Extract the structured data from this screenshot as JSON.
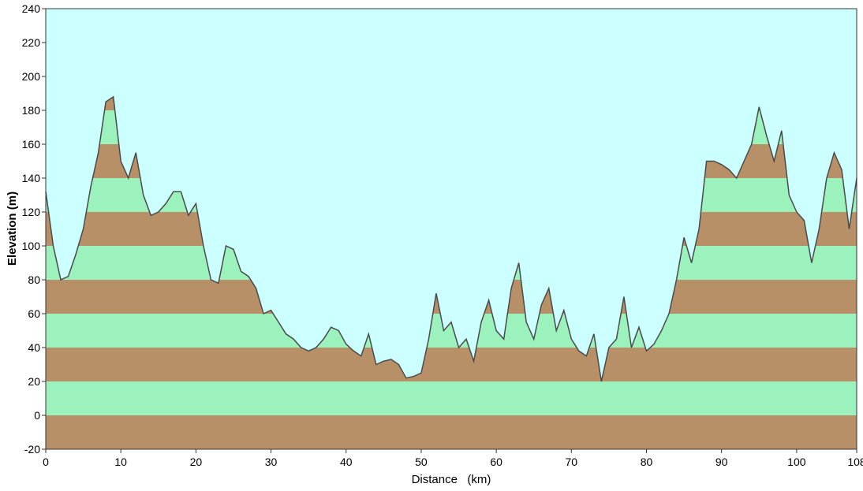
{
  "chart_data": {
    "type": "area",
    "xlabel": "Distance   (km)",
    "ylabel": "Elevation (m)",
    "x": [
      0,
      1,
      2,
      3,
      4,
      5,
      6,
      7,
      8,
      9,
      10,
      11,
      12,
      13,
      14,
      15,
      16,
      17,
      18,
      19,
      20,
      21,
      22,
      23,
      24,
      25,
      26,
      27,
      28,
      29,
      30,
      31,
      32,
      33,
      34,
      35,
      36,
      37,
      38,
      39,
      40,
      41,
      42,
      43,
      44,
      45,
      46,
      47,
      48,
      49,
      50,
      51,
      52,
      53,
      54,
      55,
      56,
      57,
      58,
      59,
      60,
      61,
      62,
      63,
      64,
      65,
      66,
      67,
      68,
      69,
      70,
      71,
      72,
      73,
      74,
      75,
      76,
      77,
      78,
      79,
      80,
      81,
      82,
      83,
      84,
      85,
      86,
      87,
      88,
      89,
      90,
      91,
      92,
      93,
      94,
      95,
      96,
      97,
      98,
      99,
      100,
      101,
      102,
      103,
      104,
      105,
      106,
      107,
      108
    ],
    "series": [
      {
        "name": "Elevation",
        "color": "#4a4a4a",
        "values": [
          132,
          100,
          80,
          82,
          95,
          110,
          135,
          155,
          185,
          188,
          150,
          140,
          155,
          130,
          118,
          120,
          125,
          132,
          132,
          118,
          125,
          100,
          80,
          78,
          100,
          98,
          85,
          82,
          75,
          60,
          62,
          55,
          48,
          45,
          40,
          38,
          40,
          45,
          52,
          50,
          42,
          38,
          35,
          48,
          30,
          32,
          33,
          30,
          22,
          23,
          25,
          45,
          72,
          50,
          55,
          40,
          45,
          32,
          55,
          68,
          50,
          45,
          75,
          90,
          55,
          45,
          65,
          75,
          50,
          62,
          45,
          38,
          35,
          48,
          20,
          40,
          45,
          70,
          40,
          52,
          38,
          42,
          50,
          60,
          80,
          105,
          90,
          110,
          150,
          150,
          148,
          145,
          140,
          150,
          160,
          182,
          165,
          150,
          168,
          130,
          120,
          115,
          90,
          110,
          140,
          155,
          145,
          110,
          140
        ]
      }
    ],
    "band_colors": [
      "#b89068",
      "#9cf2bc"
    ],
    "background": "#ccffff",
    "xlim": [
      0,
      108
    ],
    "xticks": [
      0,
      10,
      20,
      30,
      40,
      50,
      60,
      70,
      80,
      90,
      100,
      108
    ],
    "ylim": [
      -20,
      240
    ],
    "yticks": [
      -20,
      0,
      20,
      40,
      60,
      80,
      100,
      120,
      140,
      160,
      180,
      200,
      220,
      240
    ]
  }
}
